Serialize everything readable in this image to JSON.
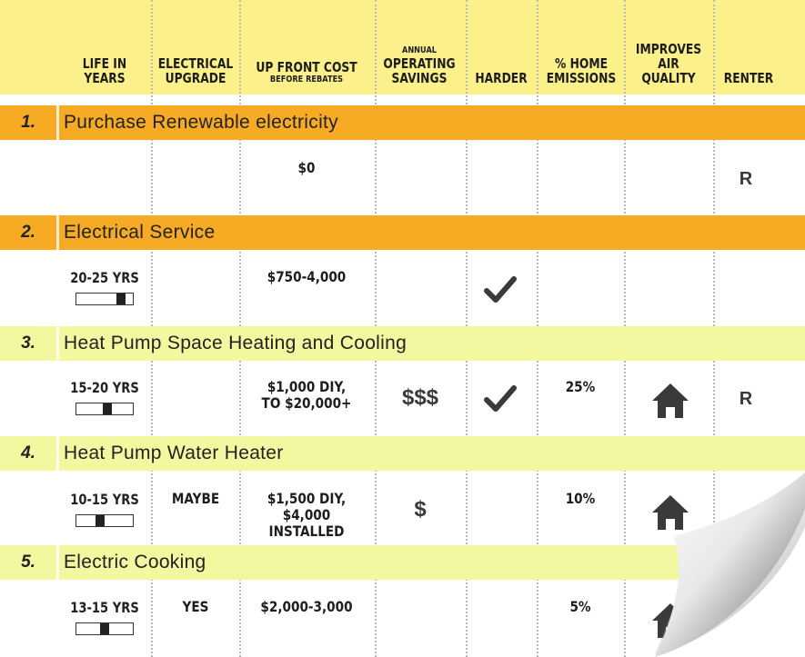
{
  "columns": {
    "life": [
      "LIFE IN",
      "YEARS"
    ],
    "electrical": [
      "ELECTRICAL",
      "UPGRADE"
    ],
    "cost": [
      "UP FRONT COST",
      "BEFORE REBATES"
    ],
    "savings": [
      "ANNUAL",
      "OPERATING",
      "SAVINGS"
    ],
    "harder": "HARDER",
    "emissions": [
      "% HOME",
      "EMISSIONS"
    ],
    "air": [
      "IMPROVES",
      "AIR QUALITY"
    ],
    "renter": "RENTER"
  },
  "rows": [
    {
      "num": "1.",
      "title": "Purchase Renewable electricity",
      "cost": [
        "$0"
      ],
      "renter": "R"
    },
    {
      "num": "2.",
      "title": "Electrical Service",
      "life": "20-25 YRS",
      "life_level": 0.85,
      "cost": [
        "$750-4,000"
      ],
      "harder": "check-icon"
    },
    {
      "num": "3.",
      "title": "Heat Pump Space Heating and Cooling",
      "life": "15-20 YRS",
      "life_level": 0.55,
      "cost": [
        "$1,000 DIY,",
        "TO $20,000+"
      ],
      "savings": "$$$",
      "harder": "check-icon",
      "emissions": "25%",
      "air": "house-icon",
      "renter": "R"
    },
    {
      "num": "4.",
      "title": "Heat Pump Water Heater",
      "life": "10-15 YRS",
      "life_level": 0.4,
      "electrical": "MAYBE",
      "cost": [
        "$1,500 DIY,",
        "$4,000 INSTALLED"
      ],
      "savings": "$",
      "emissions": "10%",
      "air": "house-icon"
    },
    {
      "num": "5.",
      "title": "Electric Cooking",
      "life": "13-15 YRS",
      "life_level": 0.5,
      "electrical": "YES",
      "cost": [
        "$2,000-3,000"
      ],
      "emissions": "5%",
      "air": "house-icon"
    }
  ],
  "colors": {
    "header": "#fbf08a",
    "orange": "#f7ab25",
    "green": "#f3f7a0"
  }
}
